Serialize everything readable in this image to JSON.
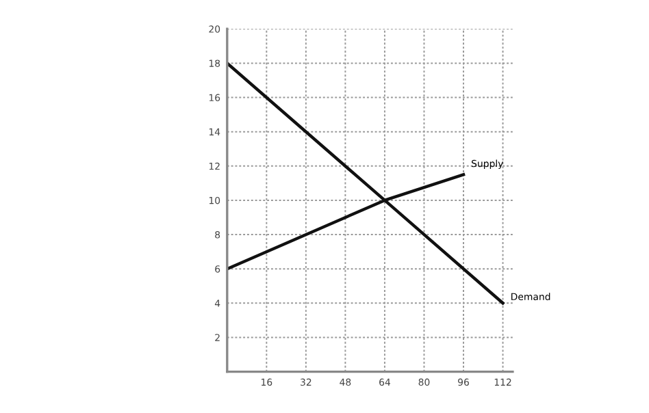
{
  "chart_data": {
    "type": "line",
    "xlim": [
      0,
      116
    ],
    "ylim": [
      0,
      20
    ],
    "xticks": [
      16,
      32,
      48,
      64,
      80,
      96,
      112
    ],
    "yticks": [
      2,
      4,
      6,
      8,
      10,
      12,
      14,
      16,
      18,
      20
    ],
    "grid": true,
    "marker": "none",
    "line_style": "solid",
    "series": [
      {
        "name": "Supply",
        "color": "#111111",
        "x": [
          0,
          64,
          96
        ],
        "values": [
          6,
          10,
          11.5
        ]
      },
      {
        "name": "Demand",
        "color": "#111111",
        "x": [
          0,
          64,
          112
        ],
        "values": [
          18,
          10,
          4
        ]
      }
    ]
  }
}
